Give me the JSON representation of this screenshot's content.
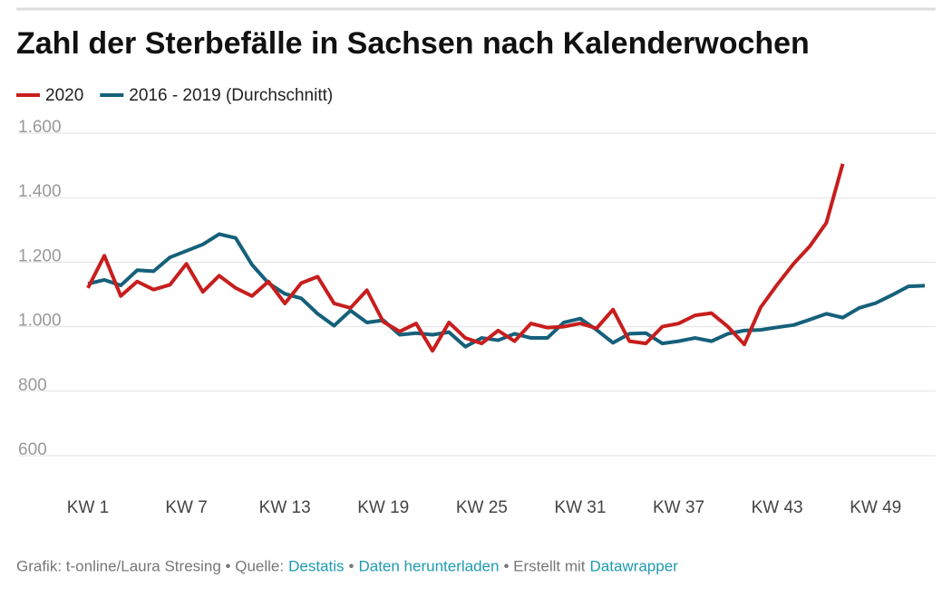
{
  "chart_data": {
    "type": "line",
    "title": "Zahl der Sterbefälle in Sachsen nach Kalenderwochen",
    "x": [
      1,
      2,
      3,
      4,
      5,
      6,
      7,
      8,
      9,
      10,
      11,
      12,
      13,
      14,
      15,
      16,
      17,
      18,
      19,
      20,
      21,
      22,
      23,
      24,
      25,
      26,
      27,
      28,
      29,
      30,
      31,
      32,
      33,
      34,
      35,
      36,
      37,
      38,
      39,
      40,
      41,
      42,
      43,
      44,
      45,
      46,
      47,
      48,
      49,
      50,
      51,
      52
    ],
    "xlim": [
      1,
      52
    ],
    "xticks": [
      {
        "value": 1,
        "label": "KW 1"
      },
      {
        "value": 7,
        "label": "KW 7"
      },
      {
        "value": 13,
        "label": "KW 13"
      },
      {
        "value": 19,
        "label": "KW 19"
      },
      {
        "value": 25,
        "label": "KW 25"
      },
      {
        "value": 31,
        "label": "KW 31"
      },
      {
        "value": 37,
        "label": "KW 37"
      },
      {
        "value": 43,
        "label": "KW 43"
      },
      {
        "value": 49,
        "label": "KW 49"
      }
    ],
    "ylim": [
      600,
      1600
    ],
    "yticks": [
      600,
      800,
      {
        "value": 1000,
        "label": "1.000"
      },
      {
        "value": 1200,
        "label": "1.200"
      },
      {
        "value": 1400,
        "label": "1.400"
      },
      {
        "value": 1600,
        "label": "1.600"
      }
    ],
    "grid": true,
    "series": [
      {
        "name": "2020",
        "color": "#c71e1d",
        "values": [
          1120,
          1220,
          1095,
          1140,
          1115,
          1130,
          1195,
          1108,
          1158,
          1120,
          1095,
          1140,
          1072,
          1135,
          1155,
          1072,
          1058,
          1113,
          1015,
          985,
          1010,
          925,
          1013,
          965,
          948,
          988,
          955,
          1010,
          997,
          1000,
          1010,
          995,
          1053,
          955,
          948,
          1000,
          1010,
          1035,
          1042,
          1000,
          945,
          1060,
          1130,
          1195,
          1250,
          1322,
          1505,
          null,
          null,
          null,
          null,
          null
        ]
      },
      {
        "name": "2016 - 2019 (Durchschnitt)",
        "color": "#15607a",
        "values": [
          1133,
          1145,
          1128,
          1175,
          1172,
          1215,
          1235,
          1255,
          1287,
          1275,
          1192,
          1135,
          1102,
          1088,
          1040,
          1003,
          1050,
          1013,
          1020,
          975,
          980,
          975,
          983,
          938,
          965,
          958,
          978,
          965,
          965,
          1013,
          1025,
          990,
          950,
          978,
          980,
          948,
          955,
          965,
          955,
          978,
          988,
          990,
          998,
          1005,
          1022,
          1040,
          1028,
          1058,
          1073,
          1098,
          1125,
          1127
        ]
      }
    ]
  },
  "footer": {
    "credit": "Grafik: t-online/Laura Stresing • Quelle:",
    "source": "Destatis",
    "sep": "•",
    "download": "Daten herunterladen",
    "made": "• Erstellt mit",
    "tool": "Datawrapper"
  }
}
